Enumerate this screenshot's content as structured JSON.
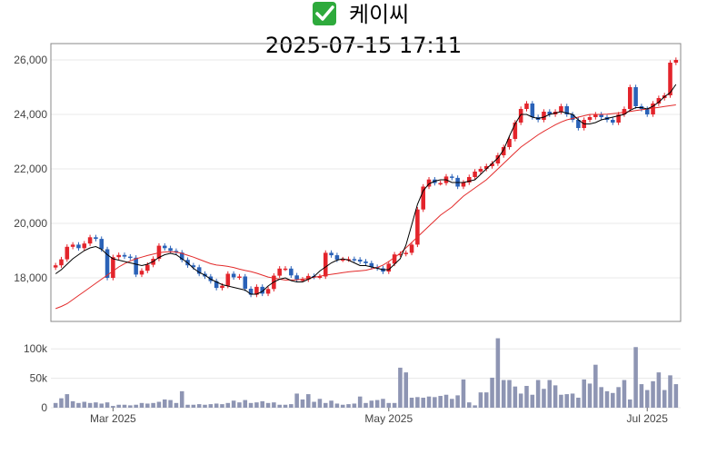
{
  "header": {
    "status_icon": "check-mark-icon",
    "status_icon_color": "#2eaa3c",
    "name": "케이씨",
    "timestamp": "2025-07-15 17:11"
  },
  "colors": {
    "up": "#e3242b",
    "down": "#2a62b8",
    "ma_fast": "#000000",
    "ma_slow": "#e32b2b",
    "volume": "#8e95b3",
    "grid": "#e8e8e8"
  },
  "chart_data": [
    {
      "type": "candlestick",
      "ylim": [
        16400,
        26600
      ],
      "y_ticks": [
        18000,
        20000,
        22000,
        24000,
        26000
      ],
      "y_tick_labels": [
        "18,000",
        "20,000",
        "22,000",
        "24,000",
        "26,000"
      ],
      "close": [
        18460,
        18680,
        19140,
        19220,
        19090,
        19260,
        19490,
        19430,
        19050,
        18000,
        18760,
        18840,
        18780,
        18740,
        18120,
        18260,
        18480,
        18700,
        19180,
        19090,
        18990,
        18930,
        18660,
        18460,
        18390,
        18150,
        18050,
        17880,
        17630,
        17710,
        18150,
        18020,
        18050,
        17600,
        17380,
        17670,
        17420,
        17590,
        18080,
        18340,
        18340,
        18090,
        17940,
        17940,
        18070,
        18040,
        18050,
        18920,
        18830,
        18670,
        18680,
        18690,
        18670,
        18600,
        18540,
        18400,
        18350,
        18230,
        18520,
        18860,
        18880,
        18920,
        19220,
        20510,
        21350,
        21610,
        21480,
        21480,
        21720,
        21670,
        21350,
        21500,
        21700,
        21900,
        22000,
        22100,
        22200,
        22500,
        22800,
        23100,
        23700,
        24200,
        24400,
        23900,
        23800,
        24100,
        24000,
        24100,
        24300,
        24000,
        23800,
        23500,
        23800,
        23900,
        24000,
        23900,
        23800,
        23700,
        24000,
        24200,
        25000,
        24300,
        24200,
        24000,
        24400,
        24600,
        24700,
        25900,
        26000
      ],
      "ma_fast": [
        18150,
        18300,
        18500,
        18700,
        18850,
        19000,
        19100,
        19150,
        19050,
        18850,
        18700,
        18650,
        18600,
        18550,
        18500,
        18450,
        18500,
        18600,
        18750,
        18850,
        18900,
        18850,
        18700,
        18550,
        18350,
        18200,
        18100,
        17950,
        17850,
        17750,
        17700,
        17650,
        17600,
        17550,
        17400,
        17400,
        17500,
        17700,
        17850,
        17950,
        18000,
        17900,
        17850,
        17850,
        17950,
        18050,
        18250,
        18400,
        18550,
        18650,
        18700,
        18650,
        18550,
        18450,
        18450,
        18400,
        18350,
        18300,
        18300,
        18500,
        18700,
        19200,
        19950,
        20700,
        21200,
        21450,
        21550,
        21600,
        21600,
        21500,
        21500,
        21500,
        21550,
        21600,
        21800,
        22000,
        22200,
        22400,
        22700,
        23200,
        23650,
        24000,
        24000,
        23900,
        23850,
        23900,
        24000,
        24050,
        24100,
        24050,
        24000,
        23800,
        23650,
        23650,
        23700,
        23800,
        23850,
        23900,
        23950,
        24000,
        24150,
        24250,
        24250,
        24200,
        24300,
        24450,
        24650,
        24800,
        25100
      ],
      "ma_slow": [
        16870,
        16950,
        17050,
        17200,
        17350,
        17500,
        17650,
        17800,
        17950,
        18100,
        18250,
        18400,
        18520,
        18620,
        18700,
        18760,
        18820,
        18870,
        18920,
        18950,
        18960,
        18940,
        18900,
        18830,
        18760,
        18680,
        18600,
        18520,
        18470,
        18450,
        18420,
        18380,
        18320,
        18270,
        18230,
        18170,
        18100,
        18030,
        17990,
        17950,
        17920,
        17920,
        17930,
        17950,
        17980,
        18020,
        18060,
        18100,
        18130,
        18160,
        18190,
        18220,
        18240,
        18260,
        18280,
        18330,
        18380,
        18470,
        18600,
        18750,
        18900,
        19100,
        19300,
        19500,
        19700,
        19900,
        20100,
        20300,
        20450,
        20600,
        20800,
        21000,
        21150,
        21300,
        21450,
        21600,
        21800,
        22000,
        22200,
        22400,
        22600,
        22800,
        22950,
        23100,
        23250,
        23380,
        23500,
        23620,
        23720,
        23800,
        23850,
        23900,
        23950,
        24000,
        24000,
        24000,
        24010,
        24030,
        24050,
        24080,
        24110,
        24140,
        24170,
        24200,
        24230,
        24260,
        24290,
        24320,
        24350
      ]
    },
    {
      "type": "bar",
      "ylim": [
        0,
        125000
      ],
      "y_ticks": [
        0,
        50000,
        100000
      ],
      "y_tick_labels": [
        "0",
        "50k",
        "100k"
      ],
      "x_tick_labels": [
        "Mar 2025",
        "May 2025",
        "Jul 2025"
      ],
      "x_tick_positions": [
        10,
        58,
        103
      ],
      "values": [
        8000,
        16000,
        23000,
        11000,
        8000,
        10000,
        8000,
        9000,
        7000,
        9000,
        3000,
        5000,
        5000,
        4000,
        5000,
        8000,
        7000,
        8000,
        10000,
        14000,
        13000,
        8000,
        28000,
        5000,
        5000,
        6000,
        5000,
        6000,
        7000,
        6000,
        8000,
        12000,
        9000,
        13000,
        8000,
        9000,
        11000,
        8000,
        9000,
        5000,
        5000,
        6000,
        24000,
        14000,
        23000,
        10000,
        15000,
        8000,
        12000,
        7000,
        5000,
        6000,
        7000,
        19000,
        8000,
        12000,
        13000,
        15000,
        8000,
        8000,
        68000,
        60000,
        17000,
        18000,
        17000,
        19000,
        18000,
        20000,
        22000,
        15000,
        21000,
        48000,
        9000,
        4000,
        26000,
        26000,
        51000,
        118000,
        47000,
        47000,
        36000,
        24000,
        37000,
        22000,
        47000,
        32000,
        47000,
        38000,
        22000,
        23000,
        24000,
        17000,
        48000,
        41000,
        73000,
        35000,
        28000,
        25000,
        35000,
        47000,
        14000,
        103000,
        40000,
        30000,
        45000,
        60000,
        30000,
        55000,
        40000
      ]
    }
  ]
}
